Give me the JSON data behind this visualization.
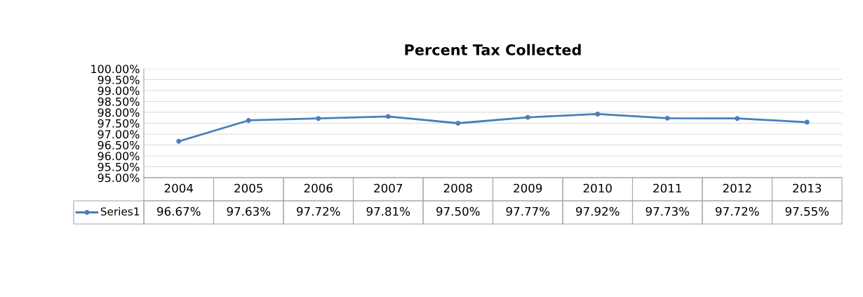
{
  "chart_data": {
    "type": "line",
    "title": "Percent Tax Collected",
    "categories": [
      "2004",
      "2005",
      "2006",
      "2007",
      "2008",
      "2009",
      "2010",
      "2011",
      "2012",
      "2013"
    ],
    "series": [
      {
        "name": "Series1",
        "color": "#4a7ebb",
        "values": [
          96.67,
          97.63,
          97.72,
          97.81,
          97.5,
          97.77,
          97.92,
          97.73,
          97.72,
          97.55
        ],
        "value_labels": [
          "96.67%",
          "97.63%",
          "97.72%",
          "97.81%",
          "97.50%",
          "97.77%",
          "97.92%",
          "97.73%",
          "97.72%",
          "97.55%"
        ]
      }
    ],
    "ylim": [
      95,
      100
    ],
    "yticks": [
      {
        "value": 95,
        "label": "95.00%"
      },
      {
        "value": 95.5,
        "label": "95.50%"
      },
      {
        "value": 96,
        "label": "96.00%"
      },
      {
        "value": 96.5,
        "label": "96.50%"
      },
      {
        "value": 97,
        "label": "97.00%"
      },
      {
        "value": 97.5,
        "label": "97.50%"
      },
      {
        "value": 98,
        "label": "98.00%"
      },
      {
        "value": 98.5,
        "label": "98.50%"
      },
      {
        "value": 99,
        "label": "99.00%"
      },
      {
        "value": 99.5,
        "label": "99.50%"
      },
      {
        "value": 100,
        "label": "100.00%"
      }
    ],
    "grid": "y",
    "legend": "bottom left",
    "marker": "circle",
    "line_style": "solid"
  }
}
